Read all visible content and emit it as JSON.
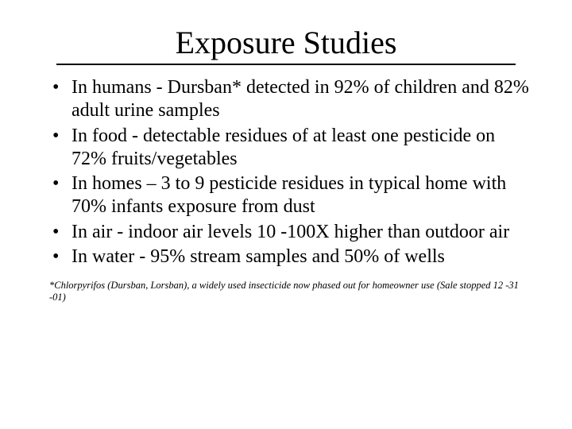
{
  "slide": {
    "title": "Exposure Studies",
    "title_fontsize": 40,
    "title_underline_color": "#000000",
    "title_underline_width": 2.5,
    "body_fontsize": 24,
    "footnote_fontsize": 12.5,
    "font_family": "Times New Roman",
    "text_color": "#000000",
    "background_color": "#ffffff",
    "bullets": [
      "In humans - Dursban* detected in 92% of children and 82% adult urine samples",
      "In food - detectable residues of at least one pesticide on 72% fruits/vegetables",
      "In homes – 3 to 9 pesticide residues in typical home with 70% infants exposure from dust",
      "In air - indoor air levels 10 -100X higher than outdoor air",
      "In water - 95% stream samples and 50% of wells"
    ],
    "footnote": "*Chlorpyrifos (Dursban, Lorsban), a widely used insecticide now phased out for homeowner use (Sale stopped 12 -31 -01)"
  }
}
